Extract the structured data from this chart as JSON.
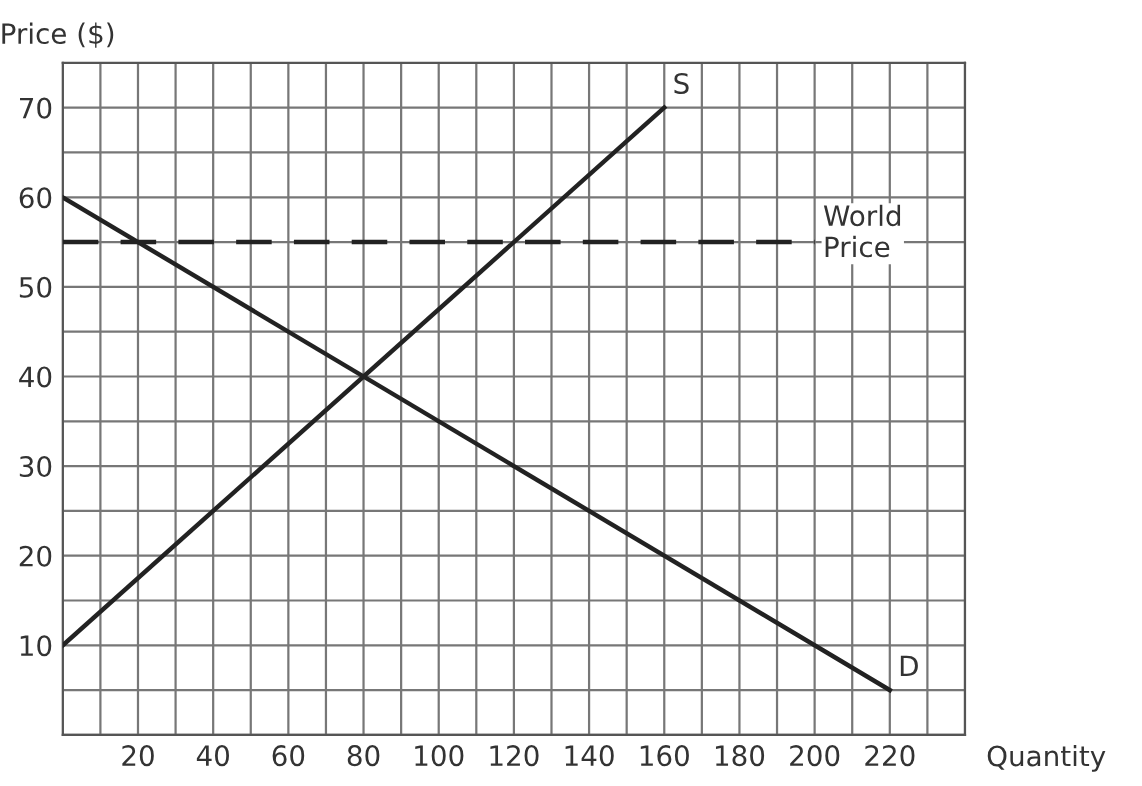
{
  "chart_data": {
    "type": "line",
    "xlabel": "Quantity",
    "ylabel": "Price ($)",
    "series": [
      {
        "x": [
          0,
          160
        ],
        "values": [
          10,
          70
        ],
        "color": "#222222",
        "line_style": "solid"
      },
      {
        "x": [
          0,
          220
        ],
        "values": [
          60,
          5
        ],
        "color": "#222222",
        "line_style": "solid"
      },
      {
        "x": [
          0,
          200
        ],
        "values": [
          55,
          55
        ],
        "color": "#222222",
        "line_style": "dashed"
      }
    ],
    "annotations": [
      {
        "text": "S",
        "x": 160,
        "y": 70
      },
      {
        "text": "D",
        "x": 220,
        "y": 5
      },
      {
        "text": "World\nPrice",
        "x": 200,
        "y": 55
      }
    ],
    "xlim": [
      0,
      240
    ],
    "ylim": [
      0,
      75
    ],
    "xticks": [
      {
        "value": 0,
        "label": null
      },
      {
        "value": 10,
        "label": null
      },
      20,
      {
        "value": 30,
        "label": null
      },
      40,
      {
        "value": 50,
        "label": null
      },
      60,
      {
        "value": 70,
        "label": null
      },
      80,
      {
        "value": 90,
        "label": null
      },
      100,
      {
        "value": 110,
        "label": null
      },
      120,
      {
        "value": 130,
        "label": null
      },
      140,
      {
        "value": 150,
        "label": null
      },
      160,
      {
        "value": 170,
        "label": null
      },
      180,
      {
        "value": 190,
        "label": null
      },
      200,
      {
        "value": 210,
        "label": null
      },
      220,
      {
        "value": 230,
        "label": null
      },
      {
        "value": 240,
        "label": null
      }
    ],
    "yticks": [
      {
        "value": 0,
        "label": null
      },
      {
        "value": 5,
        "label": null
      },
      10,
      {
        "value": 15,
        "label": null
      },
      20,
      {
        "value": 25,
        "label": null
      },
      30,
      {
        "value": 35,
        "label": null
      },
      40,
      {
        "value": 45,
        "label": null
      },
      50,
      {
        "value": 55,
        "label": null
      },
      60,
      {
        "value": 65,
        "label": null
      },
      70,
      {
        "value": 75,
        "label": null
      }
    ],
    "grid": true,
    "marker": "none"
  }
}
